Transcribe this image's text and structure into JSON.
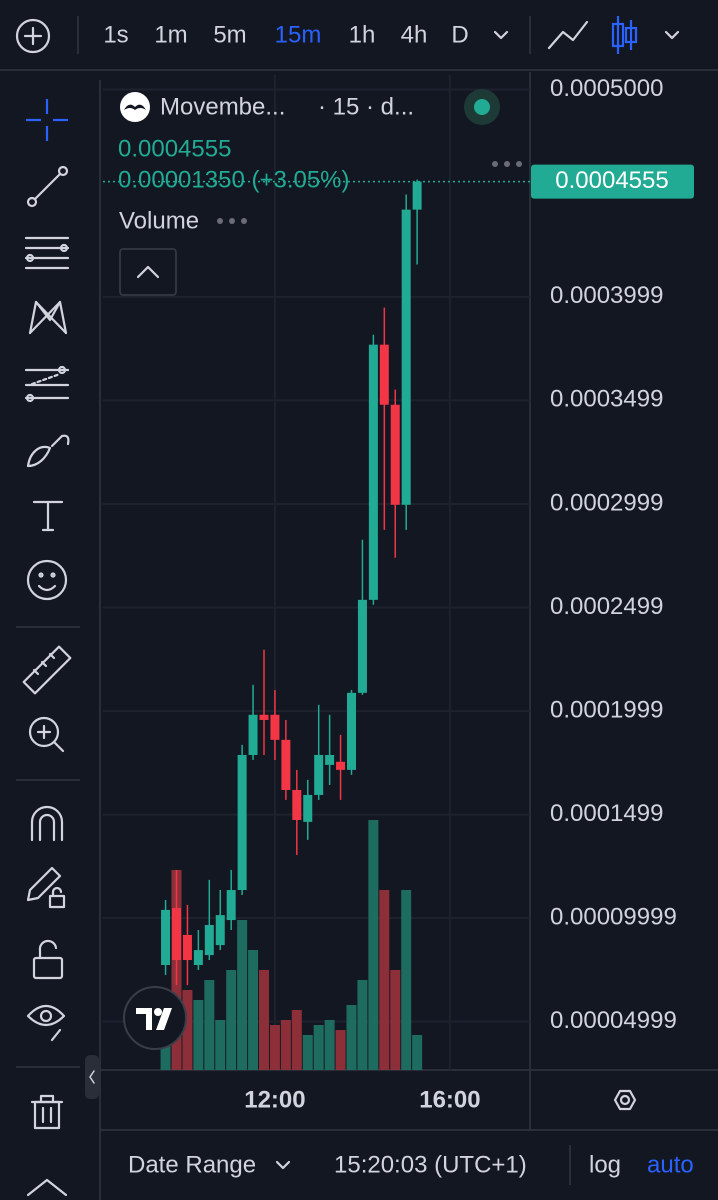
{
  "toolbar": {
    "intervals": [
      "1s",
      "1m",
      "5m",
      "15m",
      "1h",
      "4h",
      "D"
    ],
    "active_interval": "15m"
  },
  "legend": {
    "symbol": "Movembe...",
    "meta": "· 15 · d...",
    "change": "0.00001350 (+3.05%)",
    "volume_label": "Volume"
  },
  "chart_data": {
    "type": "candlestick",
    "x": [
      9.5,
      9.75,
      10,
      10.25,
      10.5,
      10.75,
      11,
      11.25,
      11.5,
      11.75,
      12,
      12.25,
      12.5,
      12.75,
      13,
      13.25,
      13.5,
      13.75,
      14,
      14.25,
      14.5,
      14.75,
      15,
      15.25
    ],
    "open": [
      7.73e-05,
      0.0001048,
      9.18e-05,
      7.73e-05,
      8.21e-05,
      8.69e-05,
      9.9e-05,
      0.0001135,
      0.0001787,
      0.0001981,
      0.0001981,
      0.000186,
      0.0001618,
      0.0001464,
      0.0001594,
      0.0001739,
      0.0001754,
      0.0001715,
      0.0002087,
      0.0002536,
      0.0003768,
      0.0003478,
      0.0002995,
      0.000442
    ],
    "high": [
      0.0001087,
      0.0001232,
      0.0001063,
      9.42e-05,
      0.0001184,
      0.0001135,
      0.0001232,
      0.0001836,
      0.0002126,
      0.0002295,
      0.0002101,
      0.0001956,
      0.0001715,
      0.0001667,
      0.0002029,
      0.0001981,
      0.0001884,
      0.0002101,
      0.0002826,
      0.0003816,
      0.0003947,
      0.0003551,
      0.0004493,
      0.0004565
    ],
    "low": [
      7.25e-05,
      6.76e-05,
      6.76e-05,
      7.49e-05,
      7.97e-05,
      8.45e-05,
      9.42e-05,
      0.0001111,
      0.0001763,
      0.0001787,
      0.0001763,
      0.000157,
      0.0001304,
      0.0001377,
      0.000157,
      0.0001642,
      0.000157,
      0.0001691,
      0.0002077,
      0.0002512,
      0.0002874,
      0.0002739,
      0.0002874,
      0.0004155
    ],
    "close": [
      0.0001039,
      7.97e-05,
      7.97e-05,
      8.45e-05,
      9.66e-05,
      0.0001014,
      0.0001135,
      0.0001787,
      0.0001981,
      0.0001956,
      0.000186,
      0.0001618,
      0.0001473,
      0.0001594,
      0.0001787,
      0.0001787,
      0.0001715,
      0.0002087,
      0.0002536,
      0.0003768,
      0.0003478,
      0.0002995,
      0.000442,
      0.0004555
    ],
    "volume": [
      25,
      200,
      80,
      70,
      90,
      50,
      100,
      150,
      120,
      100,
      45,
      50,
      60,
      35,
      45,
      50,
      40,
      65,
      90,
      250,
      180,
      100,
      180,
      35
    ],
    "volume_lim": [
      0,
      310
    ],
    "up_color": "#22ab94",
    "down_color": "#f23645",
    "up_volume_color": "#1e6b5f",
    "down_volume_color": "#8c2f39",
    "xlim": [
      8.07,
      17.83
    ],
    "xticks": [
      {
        "value": 12,
        "label": "12:00"
      },
      {
        "value": 16,
        "label": "16:00"
      }
    ],
    "ylim": [
      2.66e-05,
      0.000507
    ],
    "yticks": [
      {
        "value": 0.0005,
        "label": "0.0005000"
      },
      0.0003999,
      0.0003499,
      0.0002999,
      0.0002499,
      0.0001999,
      0.0001499,
      9.999e-05,
      4.999e-05
    ],
    "grid": true
  },
  "footer": {
    "date_range": "Date Range",
    "time": "15:20:03 (UTC+1)",
    "log": "log",
    "auto": "auto"
  }
}
